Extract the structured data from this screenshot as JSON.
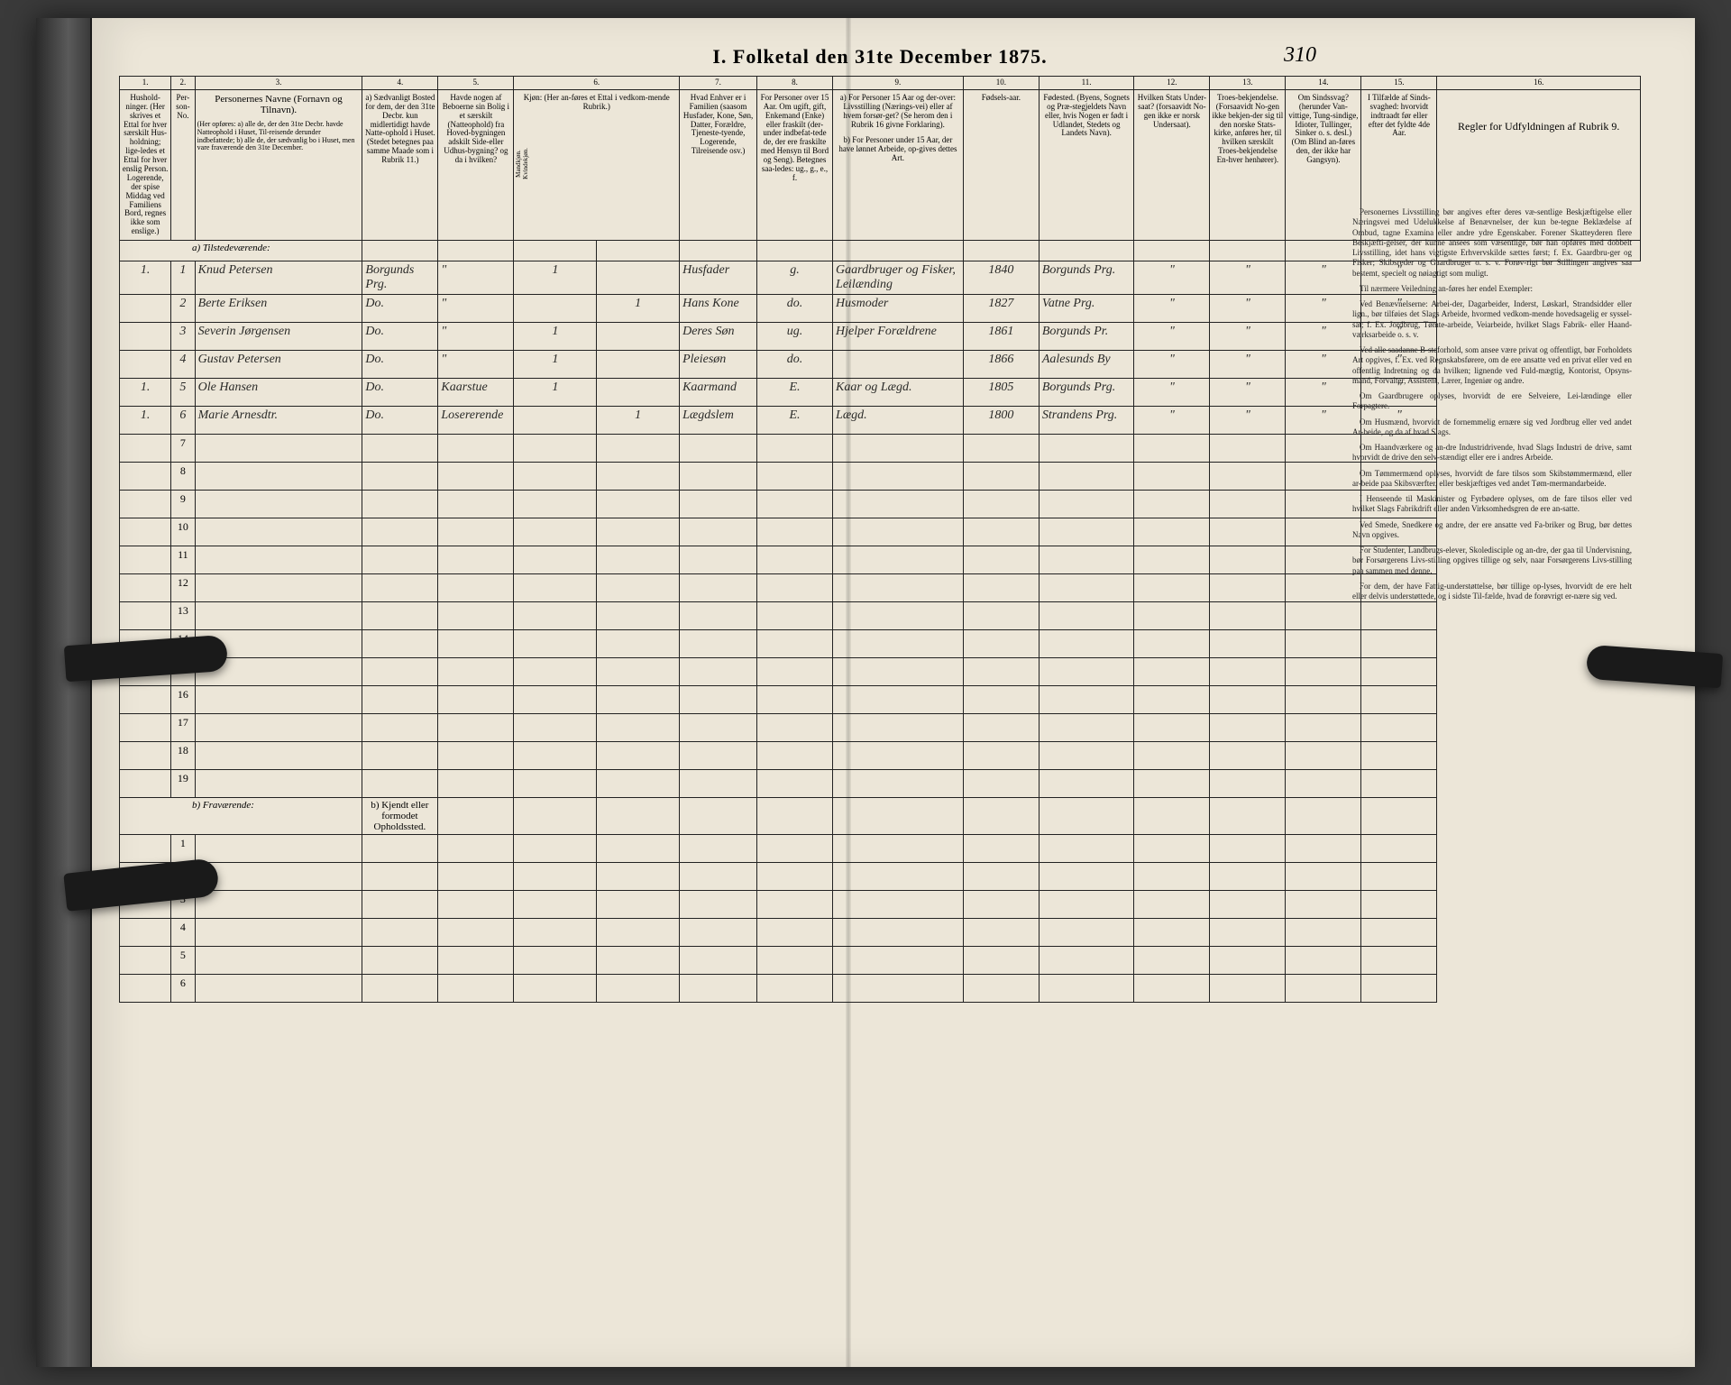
{
  "title": "I.  Folketal den 31te December 1875.",
  "page_number": "310",
  "columns": [
    "1.",
    "2.",
    "3.",
    "4.",
    "5.",
    "6.",
    "7.",
    "8.",
    "9.",
    "10.",
    "11.",
    "12.",
    "13.",
    "14.",
    "15.",
    "16."
  ],
  "headers": {
    "c1": "Hushold-ninger. (Her skrives et Ettal for hver særskilt Hus-holdning; lige-ledes et Ettal for hver enslig Person. Logerende, der spise Middag ved Familiens Bord, regnes ikke som enslige.)",
    "c2": "Per-son-No.",
    "c3_title": "Personernes Navne (Fornavn og Tilnavn).",
    "c3_sub": "(Her opføres: a) alle de, der den 31te Decbr. havde Natteophold i Huset, Til-reisende derunder indbefattede; b) alle de, der sædvanlig bo i Huset, men vare fraværende den 31te December.",
    "c4": "a) Sædvanligt Bosted for dem, der den 31te Decbr. kun midlertidigt havde Natte-ophold i Huset. (Stedet betegnes paa samme Maade som i Rubrik 11.)",
    "c5": "Havde nogen af Beboerne sin Bolig i et særskilt (Natteophold) fra Hoved-bygningen adskilt Side-eller Udhus-bygning? og da i hvilken?",
    "c6": "Kjøn: (Her an-føres et Ettal i vedkom-mende Rubrik.)",
    "c6a": "Mandkjøn.",
    "c6b": "Kvindekjøn.",
    "c7": "Hvad Enhver er i Familien (saasom Husfader, Kone, Søn, Datter, Forældre, Tjeneste-tyende, Logerende, Tilreisende osv.)",
    "c8": "For Personer over 15 Aar. Om ugift, gift, Enkemand (Enke) eller fraskilt (der-under indbefat-tede de, der ere fraskilte med Hensyn til Bord og Seng). Betegnes saa-ledes: ug., g., e., f.",
    "c9a": "a) For Personer 15 Aar og der-over: Livsstilling (Nærings-vei) eller af hvem forsør-get? (Se herom den i Rubrik 16 givne Forklaring).",
    "c9b": "b) For Personer under 15 Aar, der have lønnet Arbeide, op-gives dettes Art.",
    "c10": "Fødsels-aar.",
    "c11": "Fødested. (Byens, Sognets og Præ-stegjeldets Navn eller, hvis Nogen er født i Udlandet, Stedets og Landets Navn).",
    "c12": "Hvilken Stats Under-saat? (forsaavidt No-gen ikke er norsk Undersaat).",
    "c13": "Troes-bekjendelse. (Forsaavidt No-gen ikke bekjen-der sig til den norske Stats-kirke, anføres her, til hvilken særskilt Troes-bekjendelse En-hver henhører).",
    "c14": "Om Sindssvag? (herunder Van-vittige, Tung-sindige, Idioter, Tullinger, Sinker o. s. desl.) (Om Blind an-føres den, der ikke har Gangsyn).",
    "c15": "I Tilfælde af Sinds-svaghed: hvorvidt indtraadt før eller efter det fyldte 4de Aar.",
    "c16": "Regler for Udfyldningen af Rubrik 9."
  },
  "section_a": "a) Tilstedeværende:",
  "section_b": "b) Fraværende:",
  "section_b_col4": "b) Kjendt eller formodet Opholdssted.",
  "rows": [
    {
      "n": "1",
      "h": "1.",
      "name": "Knud Petersen",
      "bost": "Borgunds Prg.",
      "bol": "\"",
      "m": "1",
      "k": "",
      "fam": "Husfader",
      "civ": "g.",
      "nar": "Gaardbruger og Fisker, Leilænding",
      "aar": "1840",
      "fod": "Borgunds Prg.",
      "s": "\"",
      "t": "\"",
      "sv": "\"",
      "d": "\""
    },
    {
      "n": "2",
      "h": "",
      "name": "Berte Eriksen",
      "bost": "Do.",
      "bol": "\"",
      "m": "",
      "k": "1",
      "fam": "Hans Kone",
      "civ": "do.",
      "nar": "Husmoder",
      "aar": "1827",
      "fod": "Vatne Prg.",
      "s": "\"",
      "t": "\"",
      "sv": "\"",
      "d": "\""
    },
    {
      "n": "3",
      "h": "",
      "name": "Severin Jørgensen",
      "bost": "Do.",
      "bol": "\"",
      "m": "1",
      "k": "",
      "fam": "Deres Søn",
      "civ": "ug.",
      "nar": "Hjelper Forældrene",
      "aar": "1861",
      "fod": "Borgunds Pr.",
      "s": "\"",
      "t": "\"",
      "sv": "\"",
      "d": "\""
    },
    {
      "n": "4",
      "h": "",
      "name": "Gustav Petersen",
      "bost": "Do.",
      "bol": "\"",
      "m": "1",
      "k": "",
      "fam": "Pleiesøn",
      "civ": "do.",
      "nar": "",
      "aar": "1866",
      "fod": "Aalesunds By",
      "s": "\"",
      "t": "\"",
      "sv": "\"",
      "d": "\""
    },
    {
      "n": "5",
      "h": "1.",
      "name": "Ole Hansen",
      "bost": "Do.",
      "bol": "Kaarstue",
      "m": "1",
      "k": "",
      "fam": "Kaarmand",
      "civ": "E.",
      "nar": "Kaar og Lægd.",
      "aar": "1805",
      "fod": "Borgunds Prg.",
      "s": "\"",
      "t": "\"",
      "sv": "\"",
      "d": "\""
    },
    {
      "n": "6",
      "h": "1.",
      "name": "Marie Arnesdtr.",
      "bost": "Do.",
      "bol": "Losererende",
      "m": "",
      "k": "1",
      "fam": "Lægdslem",
      "civ": "E.",
      "nar": "Lægd.",
      "aar": "1800",
      "fod": "Strandens Prg.",
      "s": "\"",
      "t": "\"",
      "sv": "\"",
      "d": "\""
    }
  ],
  "instructions": [
    "Personernes Livsstilling bør angives efter deres væ-sentlige Beskjæftigelse eller Næringsvei med Udelukkelse af Benævnelser, der kun be-tegne Beklædelse af Ombud, tagne Examina eller andre ydre Egenskaber. Forener Skatteyderen flere Beskjæfti-gelser, der kunne ansees som væsentlige, bør han opføres med dobbelt Livsstilling, idet hans vigtigste Erhvervskilde sættes først; f. Ex. Gaardbru-ger og Fisker; Skibsreder og Gaardbruger o. s. v. Forøv-rigt bør Stillingen angives saa bestemt, specielt og nøiagtigt som muligt.",
    "Til nærmere Veiledning an-føres her endel Exempler:",
    "Ved Benævnelserne: Arbei-der, Dagarbeider, Inderst, Løskarl, Strandsidder eller lign., bør tilføies det Slags Arbeide, hvormed vedkom-mende hovedsagelig er syssel-sat; f. Ex. Jordbrug, Tømte-arbeide, Veiarbeide, hvilket Slags Fabrik- eller Haand-værksarbeide o. s. v.",
    "Ved alle saadanne B-steforhold, som ansee være privat og offentligt, bør Forholdets Art opgives, f. Ex. ved Regnskabsførere, om de ere ansatte ved en privat eller ved en offentlig Indretning og da hvilken; lignende ved Fuld-mægtig, Kontorist, Opsyns-mand, Forvalter, Assistent, Lærer, Ingeniør og andre.",
    "Om Gaardbrugere oplyses, hvorvidt de ere Selveiere, Lei-lændinge eller Forpagtere.",
    "Om Husmænd, hvorvidt de fornemmelig ernære sig ved Jordbrug eller ved andet Ar-beide, og da af hvad Slags.",
    "Om Haandværkere og an-dre Industridrivende, hvad Slags Industri de drive, samt hvorvidt de drive den selv-stændigt eller ere i andres Arbeide.",
    "Om Tømmermænd oplyses, hvorvidt de fare tilsos som Skibstømmermænd, eller ar-beide paa Skibsværfter, eller beskjæftiges ved andet Tøm-mermandarbeide.",
    "I Henseende til Maskinister og Fyrbødere oplyses, om de fare tilsos eller ved hvilket Slags Fabrikdrift eller anden Virksomhedsgren de ere an-satte.",
    "Ved Smede, Snedkere og andre, der ere ansatte ved Fa-briker og Brug, bør dettes Navn opgives.",
    "For Studenter, Landbrugs-elever, Skoledisciple og an-dre, der gaa til Undervisning, bør Forsørgerens Livs-stilling opgives tillige og selv, naar Forsørgerens Livs-stilling paa sammen med denne.",
    "For dem, der have Fattig-understøttelse, bør tillige op-lyses, hvorvidt de ere helt eller delvis understøttede, og i sidste Til-fælde, hvad de forøvrigt er-nære sig ved."
  ]
}
